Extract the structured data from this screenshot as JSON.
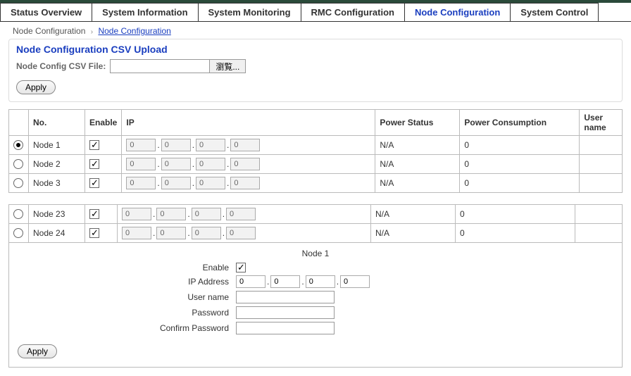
{
  "tabs": [
    {
      "label": "Status Overview",
      "active": false
    },
    {
      "label": "System Information",
      "active": false
    },
    {
      "label": "System Monitoring",
      "active": false
    },
    {
      "label": "RMC Configuration",
      "active": false
    },
    {
      "label": "Node Configuration",
      "active": true
    },
    {
      "label": "System Control",
      "active": false
    }
  ],
  "breadcrumb": {
    "crumb0": "Node Configuration",
    "crumb1": "Node Configuration",
    "sep": "›"
  },
  "csv": {
    "title": "Node Configuration CSV Upload",
    "label": "Node Config CSV File:",
    "browse": "瀏覧...",
    "path": ""
  },
  "buttons": {
    "apply": "Apply"
  },
  "table": {
    "headers": {
      "no": "No.",
      "enable": "Enable",
      "ip": "IP",
      "power_status": "Power Status",
      "power_consumption": "Power Consumption",
      "user": "User name"
    },
    "rows": [
      {
        "selected": true,
        "no": "Node 1",
        "enable": true,
        "ip": [
          "0",
          "0",
          "0",
          "0"
        ],
        "power_status": "N/A",
        "power_consumption": "0",
        "user": ""
      },
      {
        "selected": false,
        "no": "Node 2",
        "enable": true,
        "ip": [
          "0",
          "0",
          "0",
          "0"
        ],
        "power_status": "N/A",
        "power_consumption": "0",
        "user": ""
      },
      {
        "selected": false,
        "no": "Node 3",
        "enable": true,
        "ip": [
          "0",
          "0",
          "0",
          "0"
        ],
        "power_status": "N/A",
        "power_consumption": "0",
        "user": ""
      }
    ],
    "rows2": [
      {
        "selected": false,
        "no": "Node 23",
        "enable": true,
        "ip": [
          "0",
          "0",
          "0",
          "0"
        ],
        "power_status": "N/A",
        "power_consumption": "0",
        "user": ""
      },
      {
        "selected": false,
        "no": "Node 24",
        "enable": true,
        "ip": [
          "0",
          "0",
          "0",
          "0"
        ],
        "power_status": "N/A",
        "power_consumption": "0",
        "user": ""
      }
    ]
  },
  "detail": {
    "title": "Node 1",
    "labels": {
      "enable": "Enable",
      "ip": "IP Address",
      "user": "User name",
      "password": "Password",
      "confirm": "Confirm Password"
    },
    "enable": true,
    "ip": [
      "0",
      "0",
      "0",
      "0"
    ],
    "user": "",
    "password": "",
    "confirm": ""
  },
  "colors": {
    "accent": "#1a3ebf",
    "border": "#bbbbbb",
    "topbar": "#2a4a3a"
  }
}
